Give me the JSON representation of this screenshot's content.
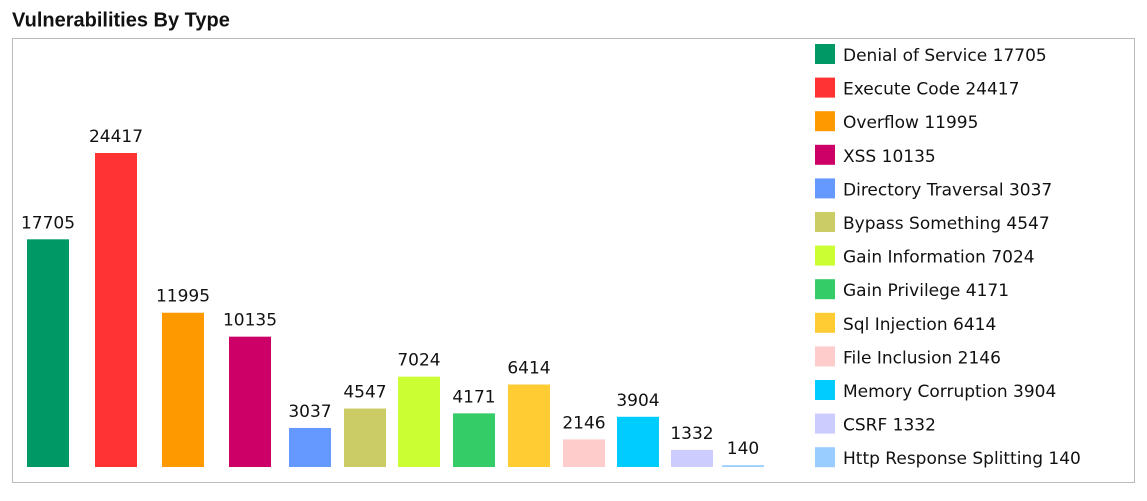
{
  "chart_data": {
    "type": "bar",
    "title": "Vulnerabilities By Type",
    "categories": [
      "Denial of Service",
      "Execute Code",
      "Overflow",
      "XSS",
      "Directory Traversal",
      "Bypass Something",
      "Gain Information",
      "Gain Privilege",
      "Sql Injection",
      "File Inclusion",
      "Memory Corruption",
      "CSRF",
      "Http Response Splitting"
    ],
    "values": [
      17705,
      24417,
      11995,
      10135,
      3037,
      4547,
      7024,
      4171,
      6414,
      2146,
      3904,
      1332,
      140
    ],
    "colors": [
      "#009966",
      "#ff3333",
      "#ff9900",
      "#cc0066",
      "#6699ff",
      "#cccc66",
      "#ccff33",
      "#33cc66",
      "#ffcc33",
      "#ffcccc",
      "#00ccff",
      "#ccccff",
      "#99ccff"
    ],
    "legend": "right"
  }
}
